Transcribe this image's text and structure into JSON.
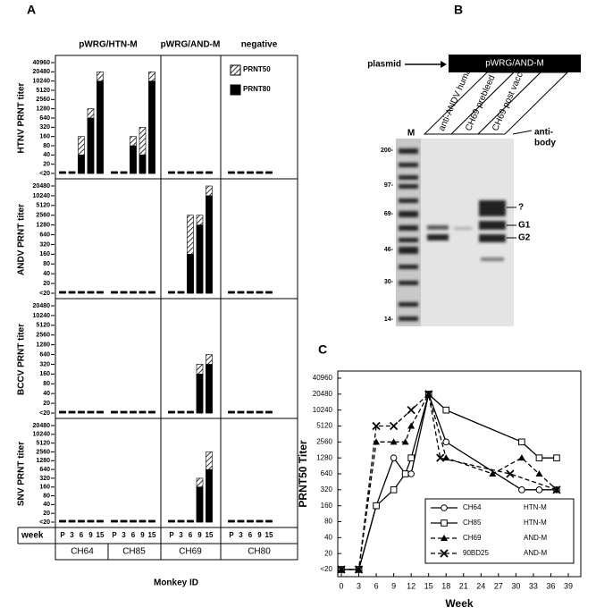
{
  "figure_labels": {
    "a": "A",
    "b": "B",
    "c": "C"
  },
  "panel_a": {
    "headers": [
      "pWRG/HTN-M",
      "pWRG/AND-M",
      "negative"
    ],
    "week_label": "week",
    "categories": [
      "P",
      "3",
      "6",
      "9",
      "15",
      "P",
      "3",
      "6",
      "9",
      "15",
      "P",
      "3",
      "6",
      "9",
      "15",
      "P",
      "3",
      "6",
      "9",
      "15"
    ],
    "groups": [
      "CH64",
      "CH85",
      "CH69",
      "CH80"
    ],
    "x_label": "Monkey ID"
  },
  "chart_data": [
    {
      "type": "bar",
      "y_label": "HTNV PRNT titer",
      "log_scale": true,
      "legend": "upper right",
      "ylim": [
        10,
        40960
      ],
      "yticks": [
        {
          "value": 10,
          "label": "<20"
        },
        20,
        40,
        80,
        160,
        320,
        640,
        1280,
        2560,
        5120,
        10240,
        20480,
        40960
      ],
      "series": [
        {
          "name": "PRNT50",
          "color": "#ffffff",
          "values": [
            10,
            10,
            160,
            1280,
            20480,
            10,
            10,
            160,
            320,
            20480,
            10,
            10,
            10,
            10,
            10,
            10,
            10,
            10,
            10,
            10
          ]
        },
        {
          "name": "PRNT80",
          "color": "#000000",
          "values": [
            10,
            10,
            40,
            640,
            10240,
            10,
            10,
            80,
            40,
            10240,
            10,
            10,
            10,
            10,
            10,
            10,
            10,
            10,
            10,
            10
          ]
        }
      ]
    },
    {
      "type": "bar",
      "y_label": "ANDV PRNT titer",
      "log_scale": true,
      "ylim": [
        10,
        20480
      ],
      "yticks": [
        {
          "value": 10,
          "label": "<20"
        },
        20,
        40,
        80,
        160,
        320,
        640,
        1280,
        2560,
        5120,
        10240,
        20480
      ],
      "series": [
        {
          "color": "#ffffff",
          "values": [
            10,
            10,
            10,
            10,
            10,
            10,
            10,
            10,
            10,
            10,
            10,
            10,
            2560,
            2560,
            20480,
            10,
            10,
            10,
            10,
            10
          ]
        },
        {
          "color": "#000000",
          "values": [
            10,
            10,
            10,
            10,
            10,
            10,
            10,
            10,
            10,
            10,
            10,
            10,
            160,
            1280,
            10240,
            10,
            10,
            10,
            10,
            10
          ]
        }
      ]
    },
    {
      "type": "bar",
      "y_label": "BCCV PRNT titer",
      "log_scale": true,
      "ylim": [
        10,
        20480
      ],
      "yticks": [
        {
          "value": 10,
          "label": "<20"
        },
        20,
        40,
        80,
        160,
        320,
        640,
        1280,
        2560,
        5120,
        10240,
        20480
      ],
      "series": [
        {
          "color": "#ffffff",
          "values": [
            10,
            10,
            10,
            10,
            10,
            10,
            10,
            10,
            10,
            10,
            10,
            10,
            10,
            320,
            640,
            10,
            10,
            10,
            10,
            10
          ]
        },
        {
          "color": "#000000",
          "values": [
            10,
            10,
            10,
            10,
            10,
            10,
            10,
            10,
            10,
            10,
            10,
            10,
            10,
            160,
            320,
            10,
            10,
            10,
            10,
            10
          ]
        }
      ]
    },
    {
      "type": "bar",
      "y_label": "SNV PRNT titer",
      "log_scale": true,
      "ylim": [
        10,
        20480
      ],
      "yticks": [
        {
          "value": 10,
          "label": "<20"
        },
        20,
        40,
        80,
        160,
        320,
        640,
        1280,
        2560,
        5120,
        10240,
        20480
      ],
      "series": [
        {
          "color": "#ffffff",
          "values": [
            10,
            10,
            10,
            10,
            10,
            10,
            10,
            10,
            10,
            10,
            10,
            10,
            10,
            320,
            2560,
            10,
            10,
            10,
            10,
            10
          ]
        },
        {
          "color": "#000000",
          "values": [
            10,
            10,
            10,
            10,
            10,
            10,
            10,
            10,
            10,
            10,
            10,
            10,
            10,
            160,
            640,
            10,
            10,
            10,
            10,
            10
          ]
        }
      ]
    },
    {
      "type": "line",
      "x_label": "Week",
      "y_label": "PRNT50 Titer",
      "log_scale": true,
      "legend": "lower right",
      "xlim": [
        0,
        39
      ],
      "xticks": [
        0,
        3,
        6,
        9,
        12,
        15,
        18,
        21,
        24,
        27,
        30,
        33,
        36,
        39
      ],
      "ylim": [
        10,
        40960
      ],
      "yticks": [
        {
          "value": 10,
          "label": "<20"
        },
        20,
        40,
        80,
        160,
        320,
        640,
        1280,
        2560,
        5120,
        10240,
        20480,
        40960
      ],
      "series": [
        {
          "name": "CH64",
          "construct": "HTN-M",
          "marker": "circle",
          "dashed": false,
          "color": "#000000",
          "x": [
            0,
            3,
            6,
            9,
            11,
            12,
            15,
            18,
            31,
            34,
            37
          ],
          "values": [
            10,
            10,
            160,
            1280,
            640,
            640,
            20480,
            2560,
            320,
            320,
            320
          ]
        },
        {
          "name": "CH85",
          "construct": "HTN-M",
          "marker": "square",
          "dashed": false,
          "color": "#000000",
          "x": [
            0,
            3,
            6,
            9,
            11,
            12,
            15,
            18,
            31,
            34,
            37
          ],
          "values": [
            10,
            10,
            160,
            320,
            640,
            1280,
            20480,
            10240,
            2560,
            1280,
            1280
          ]
        },
        {
          "name": "CH69",
          "construct": "AND-M",
          "marker": "triangle",
          "dashed": true,
          "color": "#000000",
          "x": [
            0,
            3,
            6,
            9,
            11,
            12,
            15,
            18,
            26,
            31,
            34,
            37
          ],
          "values": [
            10,
            10,
            2560,
            2560,
            2560,
            5120,
            20480,
            1280,
            640,
            1280,
            640,
            320
          ]
        },
        {
          "name": "90BD25",
          "construct": "AND-M",
          "marker": "x",
          "dashed": true,
          "color": "#000000",
          "x": [
            0,
            3,
            6,
            9,
            12,
            15,
            17,
            29,
            37
          ],
          "values": [
            10,
            10,
            5120,
            5120,
            10240,
            20480,
            1280,
            640,
            320
          ]
        }
      ]
    }
  ],
  "gel": {
    "plasmid_label": "plasmid",
    "plasmid": "pWRG/AND-M",
    "marker_lane": "M",
    "lanes": [
      "anti-ANDV human",
      "CH69 prebleed",
      "CH69 post vacc"
    ],
    "antibody_label": [
      "anti-",
      "body"
    ],
    "size_markers": [
      "200-",
      "97-",
      "69-",
      "46-",
      "30-",
      "14-"
    ],
    "bands": [
      "?",
      "G1",
      "G2"
    ]
  }
}
